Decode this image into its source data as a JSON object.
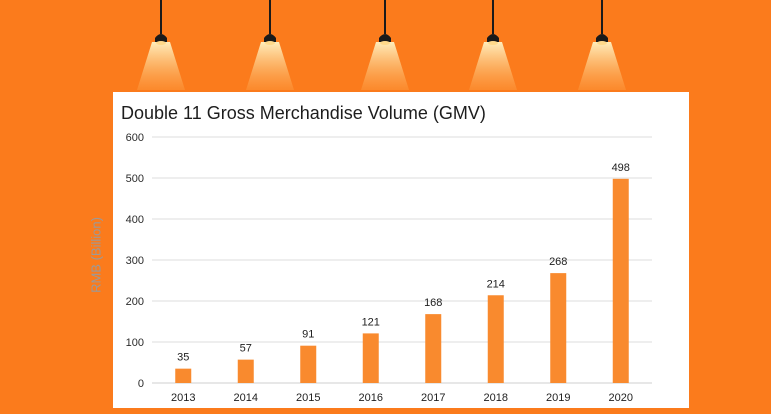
{
  "chart_data": {
    "type": "bar",
    "title": "Double 11 Gross Merchandise Volume (GMV)",
    "xlabel": "",
    "ylabel": "RMB (Billion)",
    "categories": [
      "2013",
      "2014",
      "2015",
      "2016",
      "2017",
      "2018",
      "2019",
      "2020"
    ],
    "values": [
      35,
      57,
      91,
      121,
      168,
      214,
      268,
      498
    ],
    "ylim": [
      0,
      600
    ],
    "yticks": [
      0,
      100,
      200,
      300,
      400,
      500,
      600
    ],
    "grid": true,
    "data_labels": true
  },
  "colors": {
    "background": "#fb7b1c",
    "bar": "#f98a2e",
    "grid": "#dcdcdc",
    "lamp_cord": "#1a1a1a",
    "lamp_light": "#ffd98a"
  }
}
